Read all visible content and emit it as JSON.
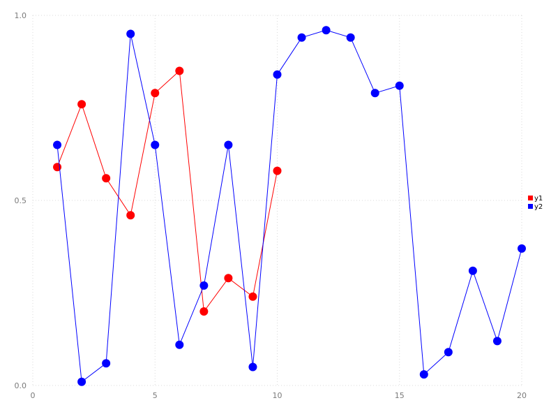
{
  "chart_data": {
    "type": "line",
    "title": "",
    "xlabel": "",
    "ylabel": "",
    "xlim": [
      0,
      20
    ],
    "ylim": [
      0.0,
      1.0
    ],
    "x_ticks": [
      0,
      5,
      10,
      15,
      20
    ],
    "x_tick_labels": [
      "0",
      "5",
      "10",
      "15",
      "20"
    ],
    "y_ticks": [
      0.0,
      0.5,
      1.0
    ],
    "y_tick_labels": [
      "0.0",
      "0.5",
      "1.0"
    ],
    "grid": "dotted",
    "legend_position": "right-middle",
    "marker": "circle",
    "marker_radius_px": 6,
    "series": [
      {
        "name": "y1",
        "color": "#ff0000",
        "x": [
          1,
          2,
          3,
          4,
          5,
          6,
          7,
          8,
          9,
          10
        ],
        "y": [
          0.59,
          0.76,
          0.56,
          0.46,
          0.79,
          0.85,
          0.2,
          0.29,
          0.24,
          0.58
        ]
      },
      {
        "name": "y2",
        "color": "#0000ff",
        "x": [
          1,
          2,
          3,
          4,
          5,
          6,
          7,
          8,
          9,
          10,
          11,
          12,
          13,
          14,
          15,
          16,
          17,
          18,
          19,
          20
        ],
        "y": [
          0.65,
          0.01,
          0.06,
          0.95,
          0.65,
          0.11,
          0.27,
          0.65,
          0.05,
          0.84,
          0.94,
          0.96,
          0.94,
          0.79,
          0.81,
          0.03,
          0.09,
          0.31,
          0.12,
          0.37
        ]
      }
    ],
    "legend": {
      "items": [
        {
          "label": "y1",
          "color": "#ff0000"
        },
        {
          "label": "y2",
          "color": "#0000ff"
        }
      ]
    },
    "colors": {
      "grid": "#d9d9d9",
      "tick_text": "#7a7a7a",
      "background": "#ffffff"
    }
  }
}
